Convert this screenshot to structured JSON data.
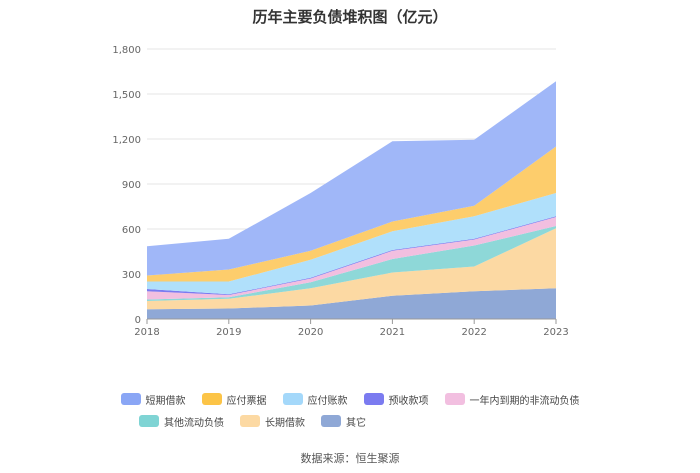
{
  "chart_data": {
    "type": "area",
    "title": "历年主要负债堆积图（亿元）",
    "stacked": true,
    "x": [
      "2018",
      "2019",
      "2020",
      "2021",
      "2022",
      "2023"
    ],
    "ylim": [
      0,
      1800
    ],
    "yticks": [
      0,
      300,
      600,
      900,
      1200,
      1500,
      1800
    ],
    "ytick_labels": [
      "0",
      "300",
      "600",
      "900",
      "1,200",
      "1,500",
      "1,800"
    ],
    "grid": true,
    "legend_position": "bottom",
    "series": [
      {
        "name": "其它",
        "color": "#8fa8d6",
        "values": [
          65,
          70,
          90,
          155,
          185,
          205
        ]
      },
      {
        "name": "长期借款",
        "color": "#fcd9a3",
        "values": [
          55,
          65,
          115,
          155,
          165,
          400
        ]
      },
      {
        "name": "其他流动负债",
        "color": "#8ed8d8",
        "values": [
          10,
          10,
          40,
          90,
          140,
          15
        ]
      },
      {
        "name": "一年内到期的非流动负债",
        "color": "#f2bfe0",
        "values": [
          55,
          15,
          25,
          55,
          40,
          60
        ]
      },
      {
        "name": "预收款项",
        "color": "#7b7bf0",
        "values": [
          15,
          5,
          5,
          5,
          5,
          5
        ]
      },
      {
        "name": "应付账款",
        "color": "#b0e0fb",
        "values": [
          50,
          85,
          120,
          125,
          150,
          155
        ]
      },
      {
        "name": "应付票据",
        "color": "#fdcd6c",
        "values": [
          40,
          80,
          60,
          65,
          70,
          310
        ]
      },
      {
        "name": "短期借款",
        "color": "#a0b7f8",
        "values": [
          195,
          205,
          385,
          535,
          440,
          435
        ]
      }
    ]
  },
  "legend": {
    "items": [
      {
        "label": "短期借款",
        "color": "#8aa6f5"
      },
      {
        "label": "应付票据",
        "color": "#fcc447"
      },
      {
        "label": "应付账款",
        "color": "#a4d8fa"
      },
      {
        "label": "预收款项",
        "color": "#7b7bf0"
      },
      {
        "label": "一年内到期的非流动负债",
        "color": "#f2bfe0"
      },
      {
        "label": "其他流动负债",
        "color": "#7fd4d4"
      },
      {
        "label": "长期借款",
        "color": "#fcd9a3"
      },
      {
        "label": "其它",
        "color": "#8fa8d6"
      }
    ]
  },
  "source": "数据来源：恒生聚源"
}
